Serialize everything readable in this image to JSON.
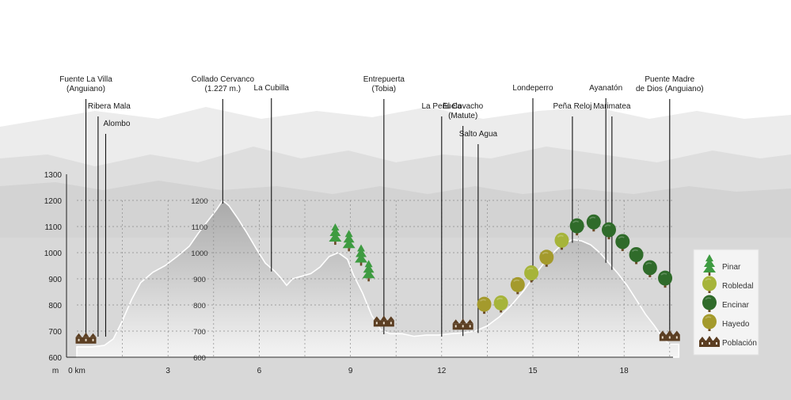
{
  "chart_data": {
    "type": "area",
    "title": "",
    "xlabel": "km",
    "ylabel": "m",
    "xlim": [
      0,
      19.8
    ],
    "ylim": [
      600,
      1350
    ],
    "y_ticks": [
      "600",
      "700",
      "800",
      "900",
      "1000",
      "1100",
      "1200",
      "1300"
    ],
    "y_unit": "m",
    "x_ticks": [
      {
        "value": 0,
        "label": "0 km"
      },
      {
        "value": 3,
        "label": "3"
      },
      {
        "value": 6,
        "label": "6"
      },
      {
        "value": 9,
        "label": "9"
      },
      {
        "value": 12,
        "label": "12"
      },
      {
        "value": 15,
        "label": "15"
      },
      {
        "value": 18,
        "label": "18"
      }
    ],
    "inner_elevation_labels": [
      {
        "value": 1200,
        "label": "1200"
      },
      {
        "value": 1100,
        "label": "1100"
      },
      {
        "value": 1000,
        "label": "1000"
      },
      {
        "value": 900,
        "label": "900"
      },
      {
        "value": 800,
        "label": "800"
      },
      {
        "value": 700,
        "label": "700"
      },
      {
        "value": 600,
        "label": "600"
      }
    ],
    "profile": {
      "x": [
        0,
        0.5,
        0.9,
        1.2,
        1.5,
        1.8,
        2.1,
        2.5,
        2.9,
        3.3,
        3.7,
        4.0,
        4.3,
        4.6,
        4.8,
        5.0,
        5.3,
        5.6,
        5.9,
        6.2,
        6.5,
        6.7,
        6.9,
        7.1,
        7.4,
        7.7,
        8.0,
        8.3,
        8.6,
        8.9,
        9.1,
        9.4,
        9.7,
        10.0,
        10.3,
        10.7,
        11.1,
        11.5,
        11.9,
        12.3,
        12.7,
        13.1,
        13.5,
        13.9,
        14.3,
        14.7,
        15.1,
        15.5,
        15.9,
        16.3,
        16.6,
        16.9,
        17.2,
        17.5,
        17.8,
        18.1,
        18.4,
        18.7,
        19.0,
        19.3,
        19.5,
        19.8
      ],
      "y": [
        640,
        640,
        645,
        670,
        740,
        820,
        885,
        925,
        950,
        985,
        1025,
        1075,
        1120,
        1165,
        1200,
        1180,
        1130,
        1075,
        1015,
        960,
        930,
        905,
        875,
        900,
        910,
        920,
        945,
        985,
        1000,
        975,
        915,
        845,
        760,
        705,
        690,
        690,
        680,
        685,
        685,
        690,
        693,
        700,
        720,
        755,
        800,
        855,
        920,
        980,
        1025,
        1050,
        1045,
        1030,
        1000,
        960,
        920,
        875,
        820,
        765,
        720,
        670,
        650,
        650
      ]
    },
    "waypoints": [
      {
        "name": "Fuente La Villa (Anguiano)",
        "km": 0.3
      },
      {
        "name": "Ribera Mala",
        "km": 0.7
      },
      {
        "name": "Alombo",
        "km": 0.95
      },
      {
        "name": "Collado Cervanco (1.227 m.)",
        "km": 4.8
      },
      {
        "name": "La Cubilla",
        "km": 6.4
      },
      {
        "name": "Entrepuerta (Tobia)",
        "km": 10.1
      },
      {
        "name": "La Peñuela",
        "km": 12.0
      },
      {
        "name": "El Covacho (Matute)",
        "km": 12.7
      },
      {
        "name": "Salto Agua",
        "km": 13.2
      },
      {
        "name": "Londeperro",
        "km": 15.0
      },
      {
        "name": "Peña Reloj",
        "km": 16.3
      },
      {
        "name": "Ayanatón",
        "km": 17.4
      },
      {
        "name": "Marimatea",
        "km": 17.6
      },
      {
        "name": "Puente Madre de Dios (Anguiano)",
        "km": 19.5
      }
    ],
    "vegetation": [
      {
        "type": "pinar",
        "km": 8.5,
        "elev": 1015
      },
      {
        "type": "pinar",
        "km": 8.95,
        "elev": 990
      },
      {
        "type": "pinar",
        "km": 9.35,
        "elev": 935
      },
      {
        "type": "pinar",
        "km": 9.6,
        "elev": 875
      },
      {
        "type": "hayedo",
        "km": 13.4,
        "elev": 745
      },
      {
        "type": "robledal",
        "km": 13.95,
        "elev": 750
      },
      {
        "type": "hayedo",
        "km": 14.5,
        "elev": 820
      },
      {
        "type": "robledal",
        "km": 14.95,
        "elev": 865
      },
      {
        "type": "hayedo",
        "km": 15.45,
        "elev": 925
      },
      {
        "type": "robledal",
        "km": 15.95,
        "elev": 990
      },
      {
        "type": "encinar",
        "km": 16.45,
        "elev": 1045
      },
      {
        "type": "encinar",
        "km": 17.0,
        "elev": 1060
      },
      {
        "type": "encinar",
        "km": 17.5,
        "elev": 1030
      },
      {
        "type": "encinar",
        "km": 17.95,
        "elev": 985
      },
      {
        "type": "encinar",
        "km": 18.4,
        "elev": 935
      },
      {
        "type": "encinar",
        "km": 18.85,
        "elev": 885
      },
      {
        "type": "encinar",
        "km": 19.35,
        "elev": 845
      }
    ],
    "towns": [
      {
        "km": 0.3,
        "elev": 640
      },
      {
        "km": 10.1,
        "elev": 705
      },
      {
        "km": 12.7,
        "elev": 693
      },
      {
        "km": 19.5,
        "elev": 650
      }
    ],
    "legend": {
      "placement": "right",
      "items": [
        {
          "type": "pinar",
          "label": "Pinar"
        },
        {
          "type": "robledal",
          "label": "Robledal"
        },
        {
          "type": "encinar",
          "label": "Encinar"
        },
        {
          "type": "hayedo",
          "label": "Hayedo"
        },
        {
          "type": "poblacion",
          "label": "Población"
        }
      ]
    },
    "grid": true,
    "colors": {
      "profile_fill": "#b9b9b9",
      "profile_fill_light": "#f2f2f2",
      "mountain_far": "#e4e4e4",
      "mountain_mid": "#d9d9d9",
      "mountain_near": "#cecece",
      "pinar": "#3e9b41",
      "robledal": "#a6b43a",
      "encinar": "#2f6b2a",
      "hayedo": "#a49a2c",
      "poblacion": "#5b3e22",
      "legend_bg": "#f4f4f4"
    }
  }
}
